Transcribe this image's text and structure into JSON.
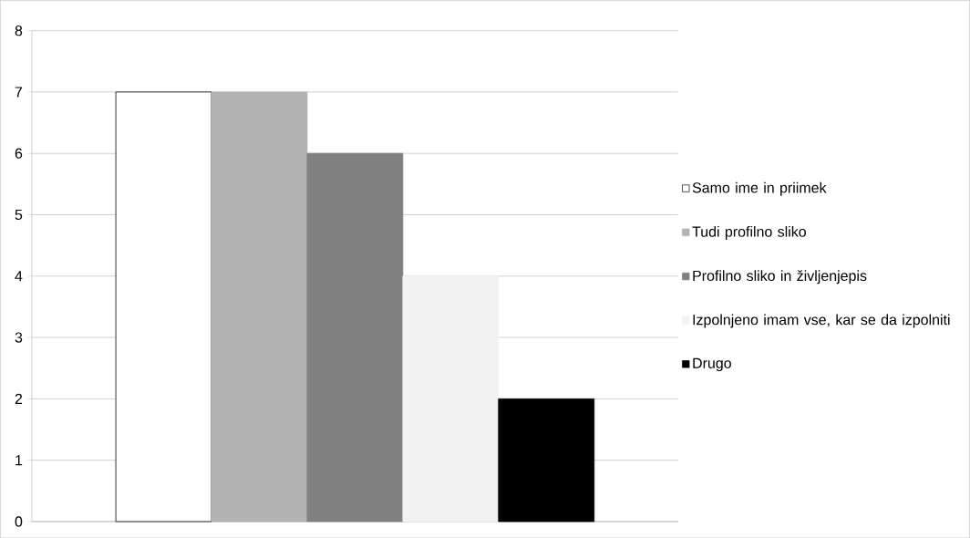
{
  "chart_data": {
    "type": "bar",
    "categories": [
      null
    ],
    "series": [
      {
        "name": "Samo ime in priimek",
        "color": "#ffffff",
        "values": [
          7
        ]
      },
      {
        "name": "Tudi profilno sliko",
        "color": "#b3b3b3",
        "values": [
          7
        ]
      },
      {
        "name": "Profilno sliko in življenjepis",
        "color": "#808080",
        "values": [
          6
        ]
      },
      {
        "name": "Izpolnjeno imam vse, kar se da izpolniti",
        "color": "#f2f2f2",
        "values": [
          4
        ]
      },
      {
        "name": "Drugo",
        "color": "#000000",
        "values": [
          2
        ]
      }
    ],
    "ylim": [
      0,
      8
    ],
    "yticks": [
      0,
      1,
      2,
      3,
      4,
      5,
      6,
      7,
      8
    ],
    "grid": "y",
    "legend": "right"
  }
}
